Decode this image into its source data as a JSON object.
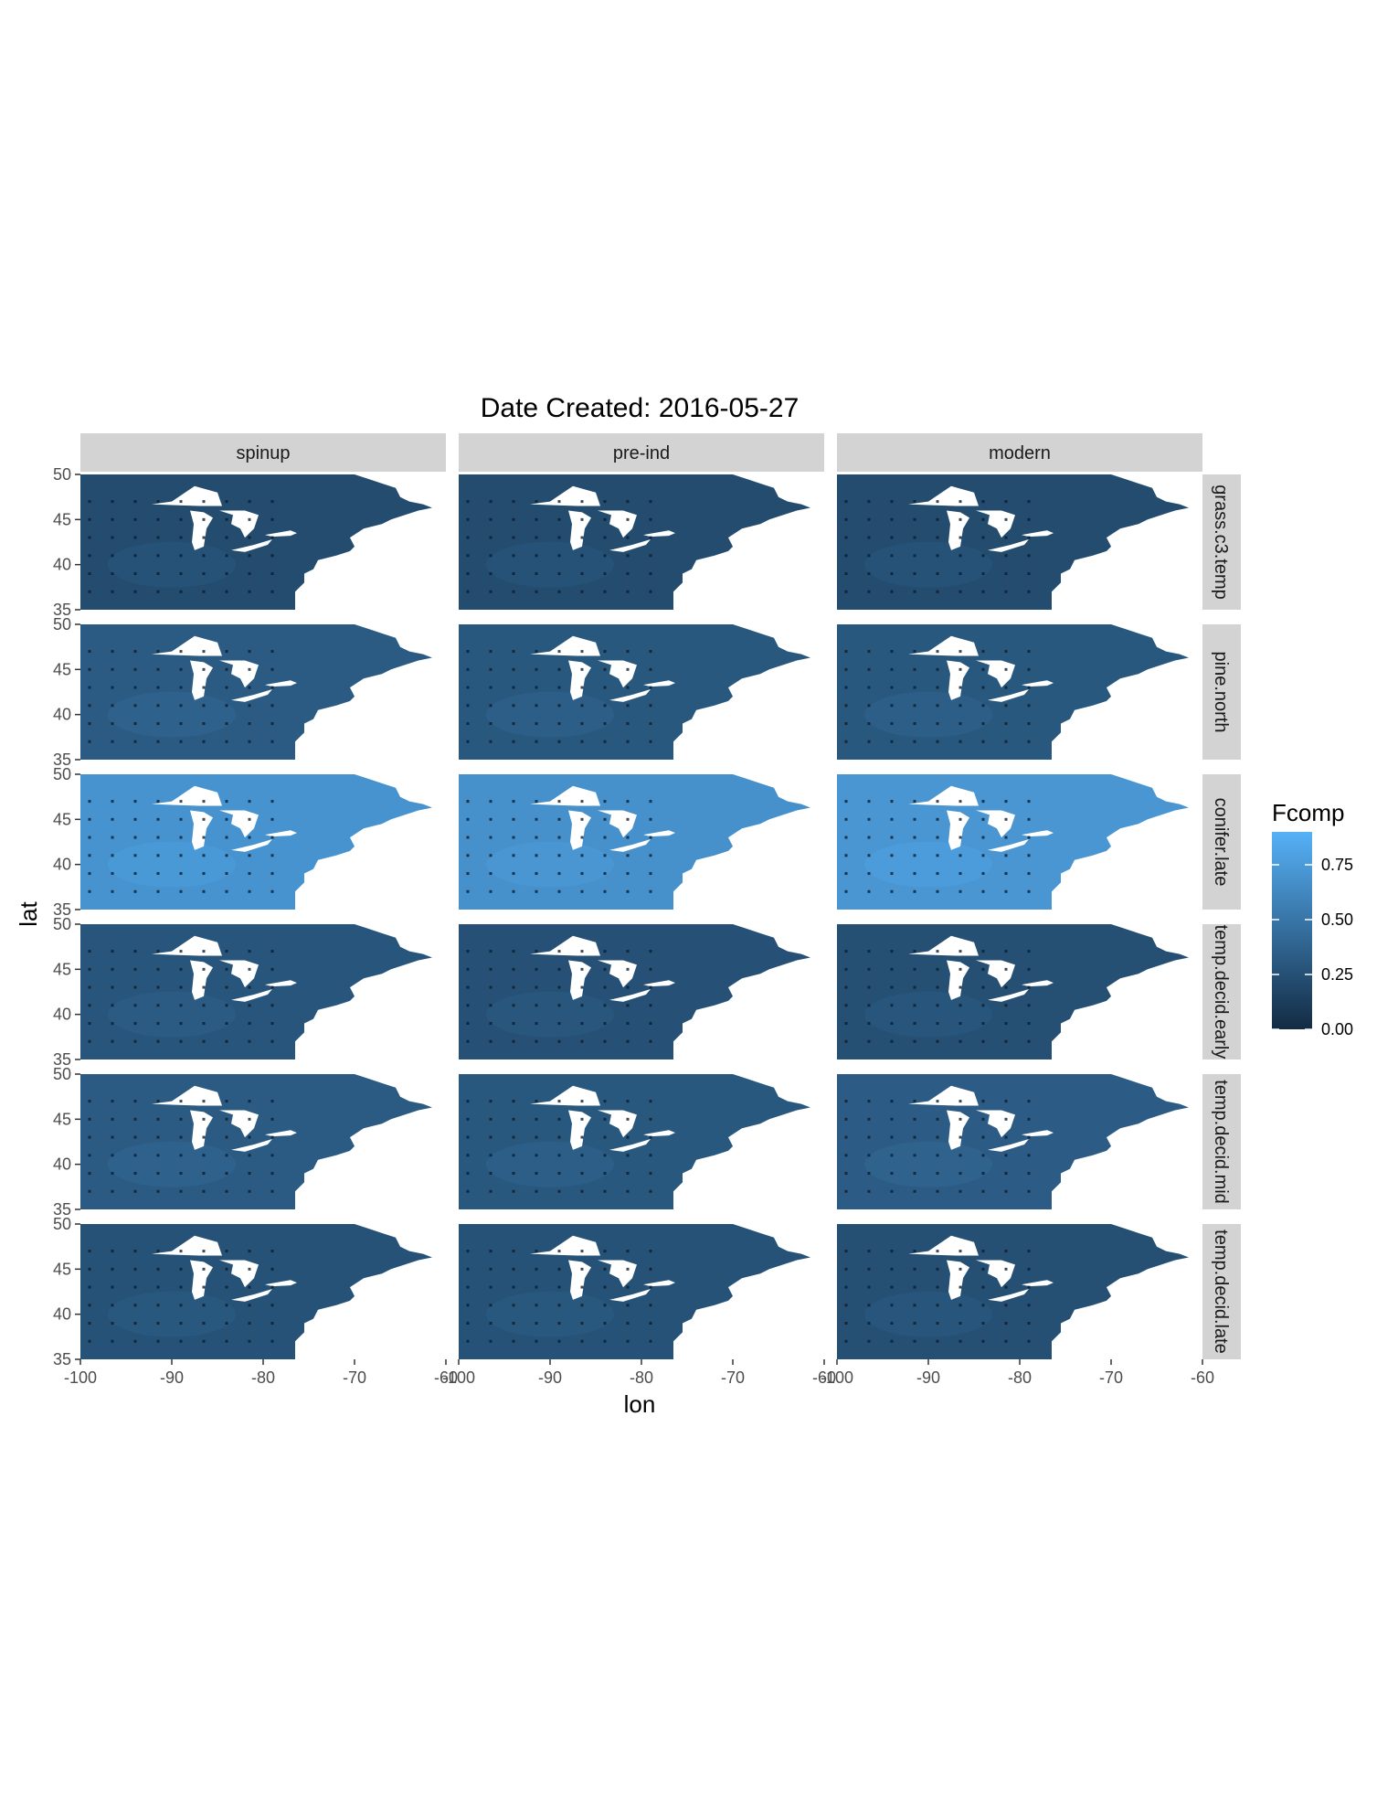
{
  "chart_data": {
    "type": "heatmap",
    "title": "Date Created: 2016-05-27",
    "xlabel": "lon",
    "ylabel": "lat",
    "xlim": [
      -100,
      -60
    ],
    "ylim": [
      35,
      50
    ],
    "x_ticks": [
      -100,
      -90,
      -80,
      -70,
      -60
    ],
    "x_tick_labels": [
      "-100",
      "-90",
      "-80",
      "-70",
      "-60"
    ],
    "y_ticks": [
      35,
      40,
      45,
      50
    ],
    "y_tick_labels": [
      "35",
      "40",
      "45",
      "50"
    ],
    "columns": [
      "spinup",
      "pre-ind",
      "modern"
    ],
    "rows": [
      "grass.c3.temp",
      "pine.north",
      "conifer.late",
      "temp.decid.early",
      "temp.decid.mid",
      "temp.decid.late"
    ],
    "legend": {
      "title": "Fcomp",
      "breaks": [
        0.0,
        0.25,
        0.5,
        0.75
      ],
      "labels": [
        "0.00",
        "0.25",
        "0.50",
        "0.75"
      ],
      "range": [
        0,
        0.9
      ],
      "low_color": "#132B43",
      "high_color": "#56B1F7",
      "placement": "right"
    },
    "panel_mean_fcomp": [
      [
        0.22,
        0.22,
        0.22
      ],
      [
        0.32,
        0.3,
        0.3
      ],
      [
        0.7,
        0.68,
        0.72
      ],
      [
        0.28,
        0.25,
        0.24
      ],
      [
        0.32,
        0.3,
        0.33
      ],
      [
        0.26,
        0.26,
        0.24
      ]
    ],
    "grid": false
  }
}
